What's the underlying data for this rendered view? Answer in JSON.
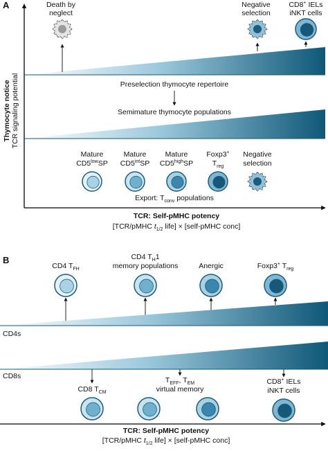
{
  "panel_a": {
    "label": "A",
    "y_title": "Thymocyte notice",
    "y_subtitle": "TCR signaling potential",
    "death": [
      "Death by",
      "neglect"
    ],
    "negative_top": [
      "Negative",
      "selection"
    ],
    "cd8_top": {
      "line1": "CD8",
      "sup": "+",
      "tail": " IELs",
      "line2": "iNKT cells"
    },
    "preselection": "Preselection thymocyte repertoire",
    "semimature": "Semimature thymocyte populations",
    "mature_low": {
      "line1": "Mature",
      "line2": "CD5",
      "sup": "low",
      "tail": "SP"
    },
    "mature_int": {
      "line1": "Mature",
      "line2": "CD5",
      "sup": "int",
      "tail": "SP"
    },
    "mature_high": {
      "line1": "Mature",
      "line2": "CD5",
      "sup": "high",
      "tail": "SP"
    },
    "foxp3": {
      "line1": "Foxp3",
      "sup": "+",
      "line2": "T",
      "sub": "reg"
    },
    "negative_bottom": [
      "Negative",
      "selection"
    ],
    "export": {
      "text": "Export: T",
      "sub": "conv",
      "tail": " populations"
    },
    "x_title": "TCR: Self-pMHC potency",
    "x_formula": {
      "open": "[TCR/pMHC ",
      "t": "t",
      "sub": "1/2",
      "close": " life] × [self-pMHC conc]"
    }
  },
  "panel_b": {
    "label": "B",
    "cd4_tfh": {
      "text": "CD4 T",
      "sub": "FH"
    },
    "cd4_th1": {
      "text": "CD4 T",
      "sub": "H",
      "tail": "1",
      "line2": "memory populations"
    },
    "anergic": "Anergic",
    "foxp3": {
      "text": "Foxp3",
      "sup": "+",
      "mid": " T",
      "sub": "reg"
    },
    "cd4s": "CD4s",
    "cd8s": "CD8s",
    "cd8_tcm": {
      "text": "CD8 T",
      "sub": "CM"
    },
    "teff": {
      "t1": "T",
      "sub1": "EFF",
      "mid": ", T",
      "sub2": "EM",
      "line2": "virtual memory"
    },
    "cd8_iels": {
      "line1": "CD8",
      "sup": "+",
      "tail": " IELs",
      "line2": "iNKT cells"
    },
    "x_title": "TCR: Self-pMHC potency",
    "x_formula": {
      "open": "[TCR/pMHC ",
      "t": "t",
      "sub": "1/2",
      "close": " life] × [self-pMHC conc]"
    }
  }
}
